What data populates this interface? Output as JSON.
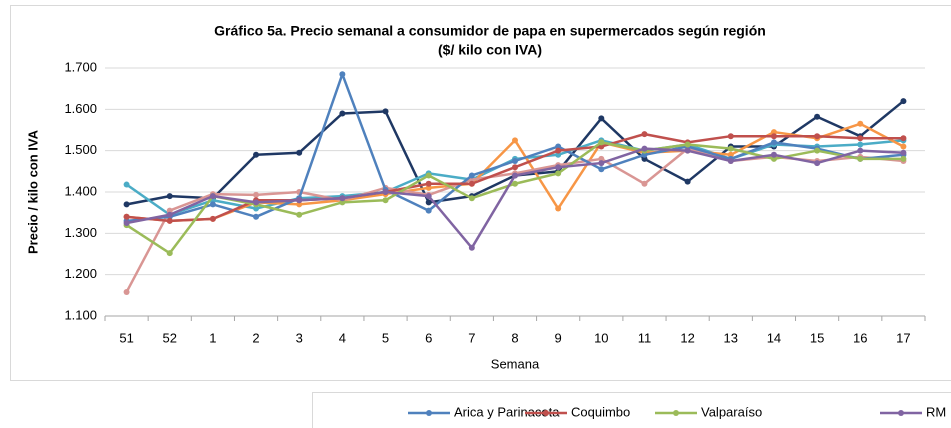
{
  "chart_data": {
    "type": "line",
    "title": "Gráfico 5a. Precio semanal a consumidor de papa en supermercados según región",
    "subtitle": "($/ kilo con IVA)",
    "x_label": "Semana",
    "y_label": "Precio / kilo con IVA",
    "categories": [
      "51",
      "52",
      "1",
      "2",
      "3",
      "4",
      "5",
      "6",
      "7",
      "8",
      "9",
      "10",
      "11",
      "12",
      "13",
      "14",
      "15",
      "16",
      "17"
    ],
    "ylim": [
      1100,
      1700
    ],
    "yticks": [
      {
        "value": 1100,
        "label": "1.100"
      },
      {
        "value": 1200,
        "label": "1.200"
      },
      {
        "value": 1300,
        "label": "1.300"
      },
      {
        "value": 1400,
        "label": "1.400"
      },
      {
        "value": 1500,
        "label": "1.500"
      },
      {
        "value": 1600,
        "label": "1.600"
      },
      {
        "value": 1700,
        "label": "1.700"
      }
    ],
    "grid": true,
    "legend": "bottom",
    "series": [
      {
        "color": "#1f3864",
        "values": [
          1370,
          1390,
          1385,
          1490,
          1495,
          1590,
          1595,
          1375,
          1390,
          1440,
          1450,
          1578,
          1480,
          1425,
          1510,
          1510,
          1582,
          1535,
          1620
        ]
      },
      {
        "color": "#4bacc6",
        "values": [
          1418,
          1345,
          1380,
          1360,
          1385,
          1390,
          1400,
          1445,
          1430,
          1480,
          1490,
          1525,
          1500,
          1515,
          1480,
          1515,
          1510,
          1515,
          1525
        ]
      },
      {
        "color": "#f79646",
        "values": [
          1340,
          1330,
          1335,
          1375,
          1370,
          1380,
          1395,
          1410,
          1420,
          1525,
          1360,
          1520,
          1495,
          1500,
          1490,
          1545,
          1530,
          1565,
          1510
        ]
      },
      {
        "color": "#d99694",
        "values": [
          1158,
          1355,
          1395,
          1393,
          1400,
          1380,
          1410,
          1393,
          1430,
          1445,
          1465,
          1480,
          1420,
          1505,
          1475,
          1485,
          1475,
          1485,
          1475
        ]
      },
      {
        "name": "Arica y Parinacota",
        "color": "#4f81bd",
        "values": [
          1330,
          1340,
          1370,
          1340,
          1385,
          1685,
          1405,
          1355,
          1440,
          1475,
          1510,
          1455,
          1490,
          1510,
          1480,
          1520,
          1505,
          1480,
          1490
        ]
      },
      {
        "name": "Coquimbo",
        "color": "#c0504d",
        "values": [
          1340,
          1330,
          1335,
          1380,
          1380,
          1385,
          1400,
          1420,
          1420,
          1460,
          1500,
          1510,
          1540,
          1520,
          1535,
          1535,
          1535,
          1530,
          1530
        ]
      },
      {
        "name": "Valparaíso",
        "color": "#9bbb59",
        "values": [
          1320,
          1252,
          1390,
          1370,
          1345,
          1375,
          1380,
          1440,
          1385,
          1420,
          1445,
          1520,
          1500,
          1515,
          1505,
          1480,
          1500,
          1480,
          1480
        ]
      },
      {
        "name": "RM",
        "color": "#8064a2",
        "values": [
          1325,
          1345,
          1390,
          1375,
          1380,
          1385,
          1400,
          1390,
          1265,
          1440,
          1460,
          1470,
          1505,
          1500,
          1475,
          1490,
          1470,
          1500,
          1495
        ]
      }
    ]
  }
}
